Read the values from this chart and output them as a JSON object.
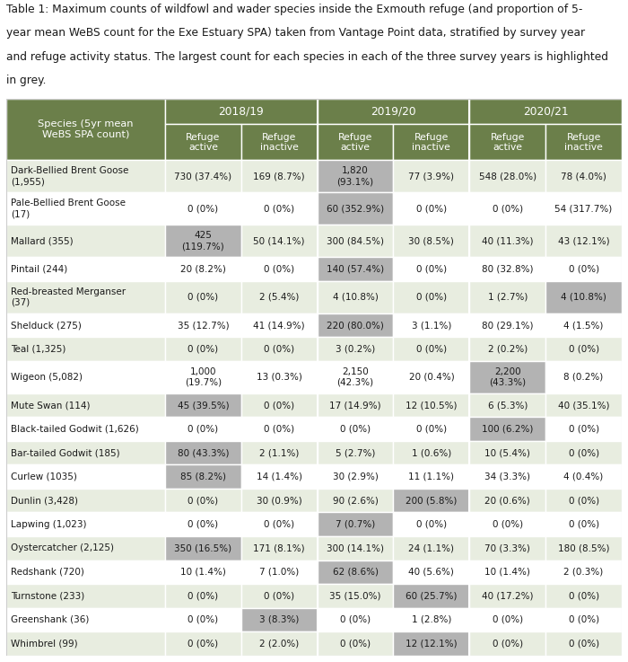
{
  "caption_parts": [
    "Table 1: Maximum counts of wildfowl and wader species inside the Exmouth refuge (and proportion of 5-",
    "year mean WeBS count for the Exe Estuary SPA) taken from Vantage Point data, stratified by survey year",
    "and refuge activity status. The largest count for each species in each of the three survey years is highlighted",
    "in grey."
  ],
  "header_year_cols": [
    "2018/19",
    "2019/20",
    "2020/21"
  ],
  "header_sub_cols": [
    "Refuge\nactive",
    "Refuge\ninactive",
    "Refuge\nactive",
    "Refuge\ninactive",
    "Refuge\nactive",
    "Refuge\ninactive"
  ],
  "col0_header": "Species (5yr mean\nWeBS SPA count)",
  "col_header_bg": "#6b7f4a",
  "col_header_text": "#ffffff",
  "row_bg_even": "#e8ede0",
  "row_bg_odd": "#f5f7f0",
  "highlight_bg": "#b3b3b3",
  "species": [
    "Dark-Bellied Brent Goose\n(1,955)",
    "Pale-Bellied Brent Goose\n(17)",
    "Mallard (355)",
    "Pintail (244)",
    "Red-breasted Merganser\n(37)",
    "Shelduck (275)",
    "Teal (1,325)",
    "Wigeon (5,082)",
    "Mute Swan (114)",
    "Black-tailed Godwit (1,626)",
    "Bar-tailed Godwit (185)",
    "Curlew (1035)",
    "Dunlin (3,428)",
    "Lapwing (1,023)",
    "Oystercatcher (2,125)",
    "Redshank (720)",
    "Turnstone (233)",
    "Greenshank (36)",
    "Whimbrel (99)"
  ],
  "data": [
    [
      "730 (37.4%)",
      "169 (8.7%)",
      "1,820\n(93.1%)",
      "77 (3.9%)",
      "548 (28.0%)",
      "78 (4.0%)"
    ],
    [
      "0 (0%)",
      "0 (0%)",
      "60 (352.9%)",
      "0 (0%)",
      "0 (0%)",
      "54 (317.7%)"
    ],
    [
      "425\n(119.7%)",
      "50 (14.1%)",
      "300 (84.5%)",
      "30 (8.5%)",
      "40 (11.3%)",
      "43 (12.1%)"
    ],
    [
      "20 (8.2%)",
      "0 (0%)",
      "140 (57.4%)",
      "0 (0%)",
      "80 (32.8%)",
      "0 (0%)"
    ],
    [
      "0 (0%)",
      "2 (5.4%)",
      "4 (10.8%)",
      "0 (0%)",
      "1 (2.7%)",
      "4 (10.8%)"
    ],
    [
      "35 (12.7%)",
      "41 (14.9%)",
      "220 (80.0%)",
      "3 (1.1%)",
      "80 (29.1%)",
      "4 (1.5%)"
    ],
    [
      "0 (0%)",
      "0 (0%)",
      "3 (0.2%)",
      "0 (0%)",
      "2 (0.2%)",
      "0 (0%)"
    ],
    [
      "1,000\n(19.7%)",
      "13 (0.3%)",
      "2,150\n(42.3%)",
      "20 (0.4%)",
      "2,200\n(43.3%)",
      "8 (0.2%)"
    ],
    [
      "45 (39.5%)",
      "0 (0%)",
      "17 (14.9%)",
      "12 (10.5%)",
      "6 (5.3%)",
      "40 (35.1%)"
    ],
    [
      "0 (0%)",
      "0 (0%)",
      "0 (0%)",
      "0 (0%)",
      "100 (6.2%)",
      "0 (0%)"
    ],
    [
      "80 (43.3%)",
      "2 (1.1%)",
      "5 (2.7%)",
      "1 (0.6%)",
      "10 (5.4%)",
      "0 (0%)"
    ],
    [
      "85 (8.2%)",
      "14 (1.4%)",
      "30 (2.9%)",
      "11 (1.1%)",
      "34 (3.3%)",
      "4 (0.4%)"
    ],
    [
      "0 (0%)",
      "30 (0.9%)",
      "90 (2.6%)",
      "200 (5.8%)",
      "20 (0.6%)",
      "0 (0%)"
    ],
    [
      "0 (0%)",
      "0 (0%)",
      "7 (0.7%)",
      "0 (0%)",
      "0 (0%)",
      "0 (0%)"
    ],
    [
      "350 (16.5%)",
      "171 (8.1%)",
      "300 (14.1%)",
      "24 (1.1%)",
      "70 (3.3%)",
      "180 (8.5%)"
    ],
    [
      "10 (1.4%)",
      "7 (1.0%)",
      "62 (8.6%)",
      "40 (5.6%)",
      "10 (1.4%)",
      "2 (0.3%)"
    ],
    [
      "0 (0%)",
      "0 (0%)",
      "35 (15.0%)",
      "60 (25.7%)",
      "40 (17.2%)",
      "0 (0%)"
    ],
    [
      "0 (0%)",
      "3 (8.3%)",
      "0 (0%)",
      "1 (2.8%)",
      "0 (0%)",
      "0 (0%)"
    ],
    [
      "0 (0%)",
      "2 (2.0%)",
      "0 (0%)",
      "12 (12.1%)",
      "0 (0%)",
      "0 (0%)"
    ]
  ],
  "highlights": [
    2,
    2,
    0,
    2,
    5,
    2,
    -1,
    4,
    0,
    4,
    0,
    0,
    3,
    2,
    0,
    2,
    3,
    1,
    3
  ]
}
